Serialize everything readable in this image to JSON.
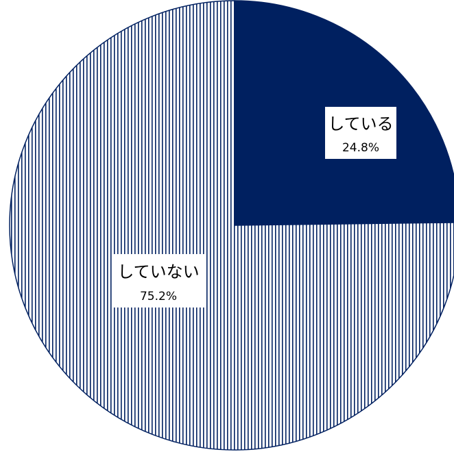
{
  "chart_data": {
    "type": "pie",
    "slices": [
      {
        "label": "している",
        "value": 24.8,
        "display": "24.8%",
        "fill": "solid",
        "color": "#002060"
      },
      {
        "label": "していない",
        "value": 75.2,
        "display": "75.2%",
        "fill": "vertical-stripes",
        "color": "#002060",
        "background": "#ffffff"
      }
    ],
    "start_angle": "12 o'clock",
    "direction": "clockwise",
    "legend": "none"
  }
}
